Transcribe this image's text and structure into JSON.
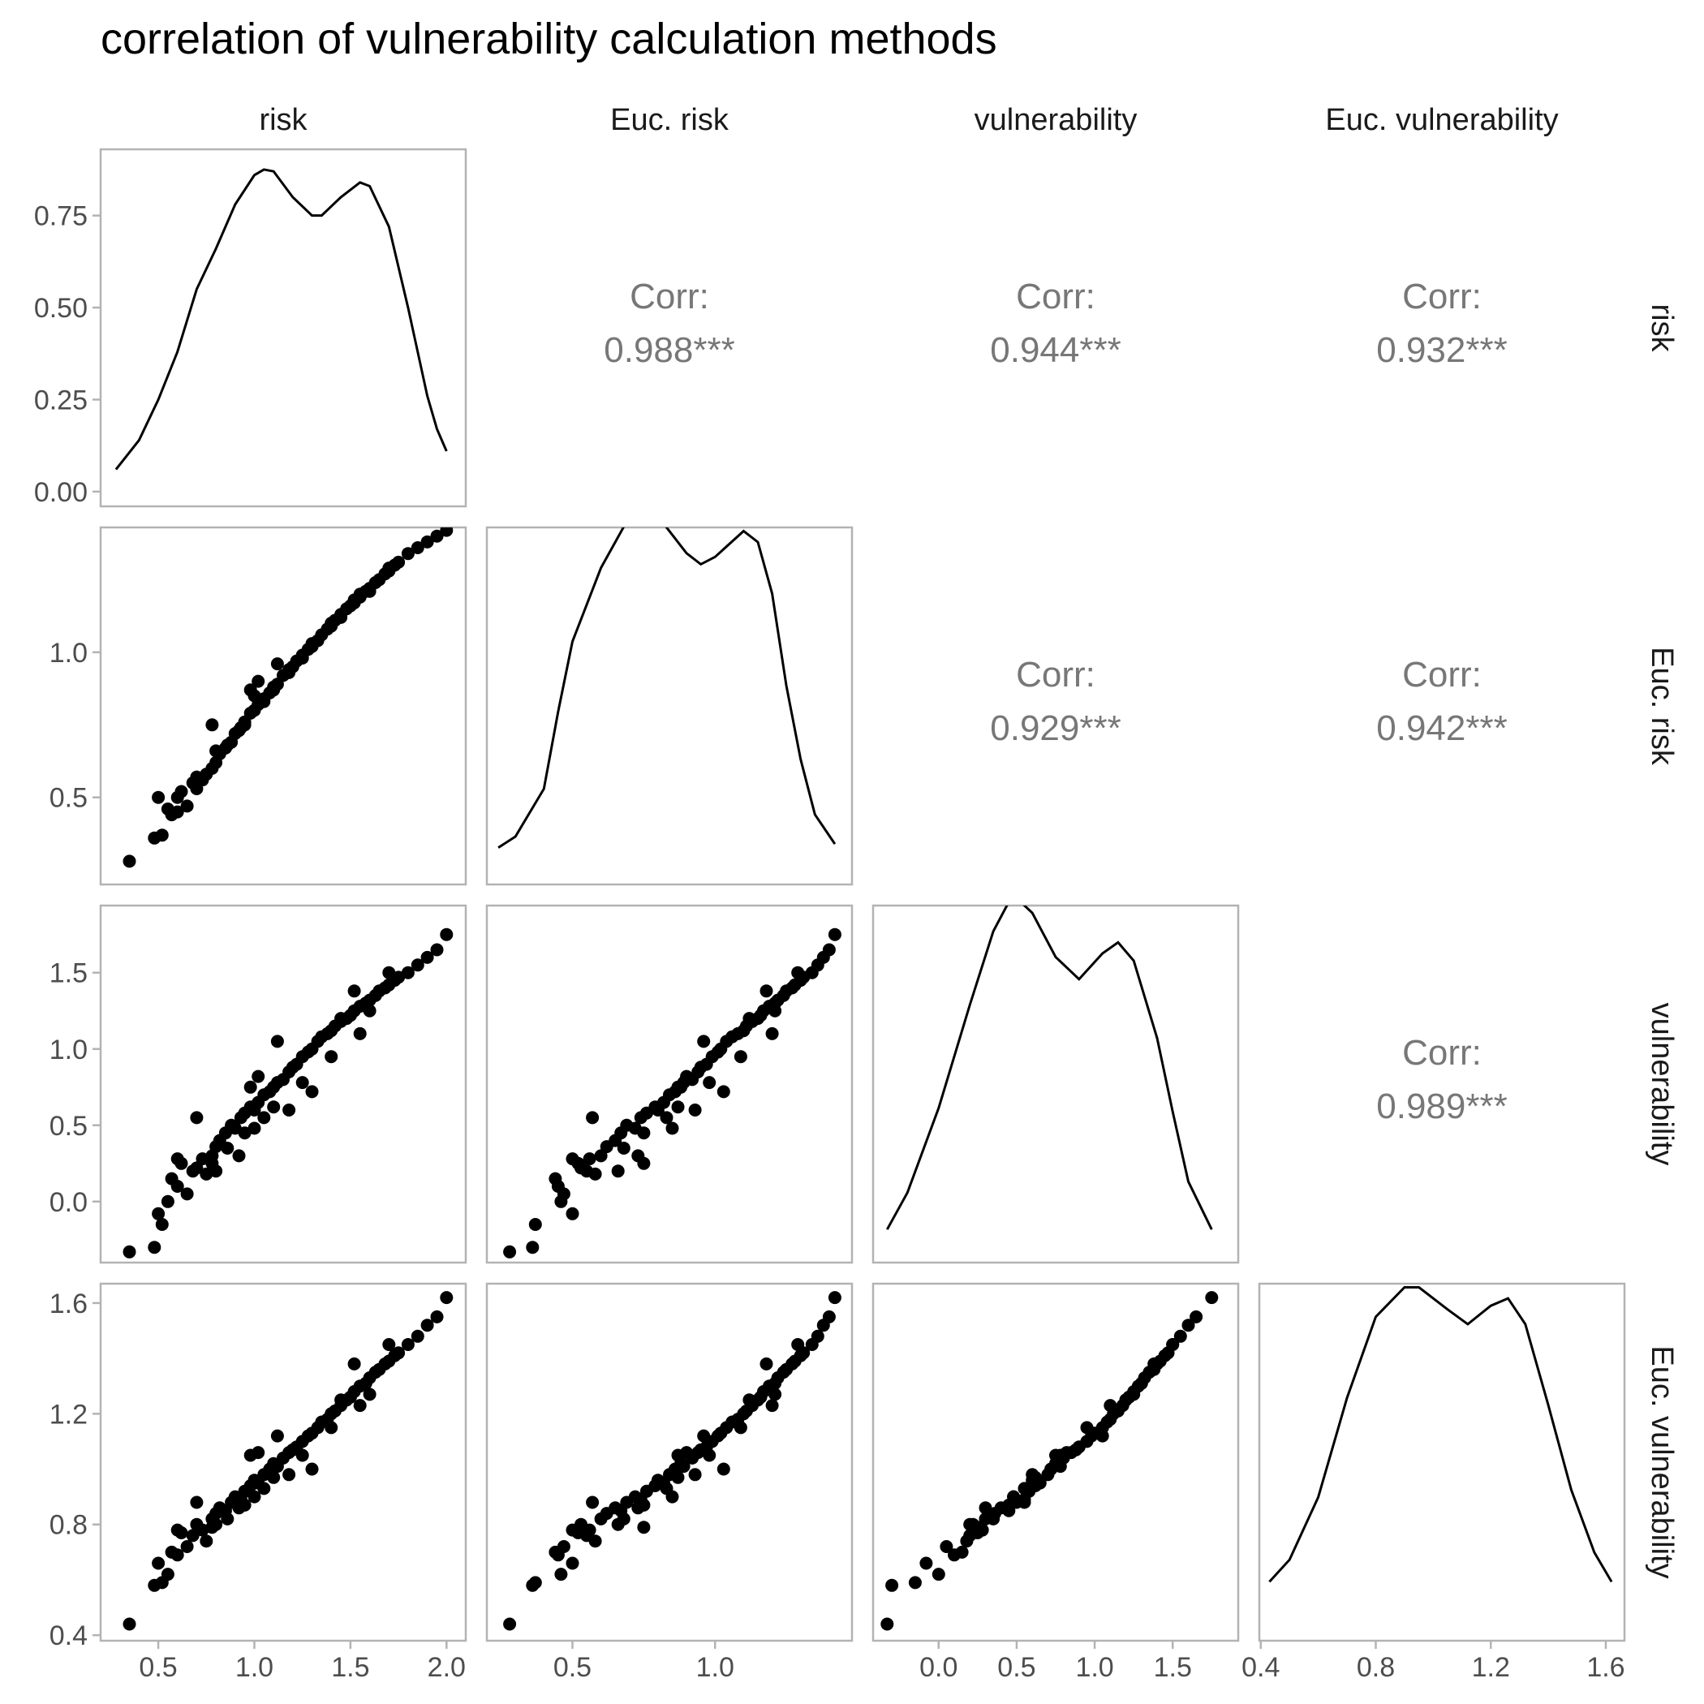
{
  "chart_data": {
    "type": "scatter",
    "title": "correlation of vulnerability calculation methods",
    "variables": [
      "risk",
      "Euc. risk",
      "vulnerability",
      "Euc. vulnerability"
    ],
    "grid": false,
    "axes": {
      "x": [
        {
          "range": [
            0.2,
            2.1
          ],
          "ticks": [
            0.5,
            1.0,
            1.5,
            2.0
          ],
          "tick_labels": [
            "0.5",
            "1.0",
            "1.5",
            "2.0"
          ]
        },
        {
          "range": [
            0.2,
            1.48
          ],
          "ticks": [
            0.5,
            1.0
          ],
          "tick_labels": [
            "0.5",
            "1.0"
          ]
        },
        {
          "range": [
            -0.42,
            1.92
          ],
          "ticks": [
            0.0,
            0.5,
            1.0,
            1.5
          ],
          "tick_labels": [
            "0.0",
            "0.5",
            "1.0",
            "1.5"
          ]
        },
        {
          "range": [
            0.395,
            1.665
          ],
          "ticks": [
            0.4,
            0.8,
            1.2,
            1.6
          ],
          "tick_labels": [
            "0.4",
            "0.8",
            "1.2",
            "1.6"
          ]
        }
      ],
      "y": [
        {
          "range": [
            -0.04,
            0.93
          ],
          "ticks": [
            0.0,
            0.25,
            0.5,
            0.75
          ],
          "tick_labels": [
            "0.00",
            "0.25",
            "0.50",
            "0.75"
          ]
        },
        {
          "range": [
            0.2,
            1.43
          ],
          "ticks": [
            0.5,
            1.0
          ],
          "tick_labels": [
            "0.5",
            "1.0"
          ]
        },
        {
          "range": [
            -0.4,
            1.94
          ],
          "ticks": [
            0.0,
            0.5,
            1.0,
            1.5
          ],
          "tick_labels": [
            "0.0",
            "0.5",
            "1.0",
            "1.5"
          ]
        },
        {
          "range": [
            0.38,
            1.67
          ],
          "ticks": [
            0.4,
            0.8,
            1.2,
            1.6
          ],
          "tick_labels": [
            "0.4",
            "0.8",
            "1.2",
            "1.6"
          ]
        }
      ]
    },
    "correlations": [
      {
        "row": 0,
        "col": 1,
        "label": "Corr:",
        "value": "0.988***"
      },
      {
        "row": 0,
        "col": 2,
        "label": "Corr:",
        "value": "0.944***"
      },
      {
        "row": 0,
        "col": 3,
        "label": "Corr:",
        "value": "0.932***"
      },
      {
        "row": 1,
        "col": 2,
        "label": "Corr:",
        "value": "0.929***"
      },
      {
        "row": 1,
        "col": 3,
        "label": "Corr:",
        "value": "0.942***"
      },
      {
        "row": 2,
        "col": 3,
        "label": "Corr:",
        "value": "0.989***"
      }
    ],
    "densities": [
      {
        "variable": "risk",
        "points": [
          [
            0.28,
            0.06
          ],
          [
            0.4,
            0.14
          ],
          [
            0.5,
            0.25
          ],
          [
            0.6,
            0.38
          ],
          [
            0.7,
            0.55
          ],
          [
            0.8,
            0.66
          ],
          [
            0.9,
            0.78
          ],
          [
            1.0,
            0.86
          ],
          [
            1.05,
            0.875
          ],
          [
            1.1,
            0.87
          ],
          [
            1.2,
            0.8
          ],
          [
            1.3,
            0.75
          ],
          [
            1.35,
            0.75
          ],
          [
            1.45,
            0.8
          ],
          [
            1.55,
            0.84
          ],
          [
            1.6,
            0.83
          ],
          [
            1.7,
            0.72
          ],
          [
            1.8,
            0.5
          ],
          [
            1.9,
            0.26
          ],
          [
            1.95,
            0.17
          ],
          [
            2.0,
            0.11
          ]
        ]
      },
      {
        "variable": "Euc. risk",
        "points": [
          [
            0.24,
            0.06
          ],
          [
            0.3,
            0.09
          ],
          [
            0.4,
            0.22
          ],
          [
            0.45,
            0.43
          ],
          [
            0.5,
            0.62
          ],
          [
            0.6,
            0.82
          ],
          [
            0.7,
            0.96
          ],
          [
            0.75,
            0.98
          ],
          [
            0.8,
            0.96
          ],
          [
            0.9,
            0.86
          ],
          [
            0.95,
            0.83
          ],
          [
            1.0,
            0.85
          ],
          [
            1.1,
            0.92
          ],
          [
            1.15,
            0.89
          ],
          [
            1.2,
            0.75
          ],
          [
            1.25,
            0.5
          ],
          [
            1.3,
            0.3
          ],
          [
            1.35,
            0.15
          ],
          [
            1.42,
            0.07
          ]
        ]
      },
      {
        "variable": "vulnerability",
        "points": [
          [
            -0.33,
            0.05
          ],
          [
            -0.2,
            0.15
          ],
          [
            0.0,
            0.38
          ],
          [
            0.2,
            0.66
          ],
          [
            0.35,
            0.86
          ],
          [
            0.45,
            0.94
          ],
          [
            0.5,
            0.95
          ],
          [
            0.6,
            0.91
          ],
          [
            0.75,
            0.79
          ],
          [
            0.9,
            0.73
          ],
          [
            1.05,
            0.8
          ],
          [
            1.15,
            0.83
          ],
          [
            1.25,
            0.78
          ],
          [
            1.4,
            0.57
          ],
          [
            1.5,
            0.37
          ],
          [
            1.6,
            0.18
          ],
          [
            1.75,
            0.05
          ]
        ]
      },
      {
        "variable": "Euc. vulnerability",
        "points": [
          [
            0.43,
            0.12
          ],
          [
            0.5,
            0.18
          ],
          [
            0.6,
            0.35
          ],
          [
            0.7,
            0.62
          ],
          [
            0.8,
            0.84
          ],
          [
            0.9,
            0.92
          ],
          [
            0.95,
            0.92
          ],
          [
            1.05,
            0.86
          ],
          [
            1.12,
            0.82
          ],
          [
            1.2,
            0.87
          ],
          [
            1.26,
            0.89
          ],
          [
            1.32,
            0.82
          ],
          [
            1.4,
            0.6
          ],
          [
            1.48,
            0.37
          ],
          [
            1.56,
            0.2
          ],
          [
            1.62,
            0.12
          ]
        ]
      }
    ],
    "points": [
      [
        0.35,
        0.28,
        -0.33,
        0.44
      ],
      [
        0.48,
        0.36,
        -0.3,
        0.58
      ],
      [
        0.52,
        0.37,
        -0.15,
        0.59
      ],
      [
        0.55,
        0.46,
        0.0,
        0.62
      ],
      [
        0.5,
        0.5,
        -0.08,
        0.66
      ],
      [
        0.57,
        0.44,
        0.15,
        0.7
      ],
      [
        0.6,
        0.45,
        0.1,
        0.69
      ],
      [
        0.65,
        0.47,
        0.05,
        0.72
      ],
      [
        0.62,
        0.52,
        0.25,
        0.77
      ],
      [
        0.68,
        0.55,
        0.2,
        0.76
      ],
      [
        0.7,
        0.53,
        0.22,
        0.8
      ],
      [
        0.73,
        0.56,
        0.28,
        0.78
      ],
      [
        0.78,
        0.6,
        0.3,
        0.82
      ],
      [
        0.8,
        0.62,
        0.36,
        0.84
      ],
      [
        0.75,
        0.58,
        0.18,
        0.74
      ],
      [
        0.82,
        0.65,
        0.4,
        0.86
      ],
      [
        0.85,
        0.67,
        0.45,
        0.85
      ],
      [
        0.88,
        0.69,
        0.5,
        0.88
      ],
      [
        0.9,
        0.72,
        0.48,
        0.9
      ],
      [
        0.93,
        0.74,
        0.55,
        0.89
      ],
      [
        0.95,
        0.76,
        0.58,
        0.92
      ],
      [
        0.98,
        0.79,
        0.62,
        0.94
      ],
      [
        1.0,
        0.8,
        0.6,
        0.96
      ],
      [
        1.02,
        0.82,
        0.65,
        0.95
      ],
      [
        1.05,
        0.84,
        0.7,
        0.98
      ],
      [
        1.08,
        0.86,
        0.72,
        1.0
      ],
      [
        1.1,
        0.88,
        0.75,
        1.02
      ],
      [
        1.12,
        0.89,
        0.78,
        1.01
      ],
      [
        1.15,
        0.92,
        0.8,
        1.04
      ],
      [
        1.18,
        0.94,
        0.85,
        1.06
      ],
      [
        1.2,
        0.95,
        0.88,
        1.07
      ],
      [
        1.22,
        0.97,
        0.9,
        1.08
      ],
      [
        1.25,
        0.99,
        0.95,
        1.1
      ],
      [
        1.28,
        1.01,
        0.98,
        1.12
      ],
      [
        1.3,
        1.02,
        1.0,
        1.13
      ],
      [
        1.33,
        1.04,
        1.05,
        1.15
      ],
      [
        1.35,
        1.06,
        1.08,
        1.17
      ],
      [
        1.38,
        1.08,
        1.1,
        1.18
      ],
      [
        1.4,
        1.1,
        1.12,
        1.2
      ],
      [
        1.42,
        1.11,
        1.15,
        1.21
      ],
      [
        1.45,
        1.13,
        1.18,
        1.23
      ],
      [
        1.48,
        1.15,
        1.2,
        1.25
      ],
      [
        1.5,
        1.16,
        1.22,
        1.26
      ],
      [
        1.52,
        1.17,
        1.25,
        1.28
      ],
      [
        1.55,
        1.19,
        1.28,
        1.3
      ],
      [
        1.58,
        1.21,
        1.3,
        1.31
      ],
      [
        1.6,
        1.22,
        1.32,
        1.33
      ],
      [
        1.63,
        1.24,
        1.35,
        1.35
      ],
      [
        1.65,
        1.25,
        1.38,
        1.36
      ],
      [
        1.68,
        1.27,
        1.4,
        1.38
      ],
      [
        1.7,
        1.28,
        1.42,
        1.39
      ],
      [
        1.73,
        1.3,
        1.45,
        1.41
      ],
      [
        1.75,
        1.31,
        1.47,
        1.42
      ],
      [
        1.8,
        1.34,
        1.5,
        1.45
      ],
      [
        1.85,
        1.36,
        1.55,
        1.48
      ],
      [
        1.9,
        1.38,
        1.6,
        1.52
      ],
      [
        1.95,
        1.4,
        1.65,
        1.55
      ],
      [
        2.0,
        1.42,
        1.75,
        1.62
      ],
      [
        0.98,
        0.87,
        0.75,
        1.05
      ],
      [
        1.02,
        0.9,
        0.82,
        1.06
      ],
      [
        0.92,
        0.73,
        0.3,
        0.86
      ],
      [
        1.12,
        0.96,
        1.05,
        1.12
      ],
      [
        1.3,
        1.03,
        0.72,
        1.0
      ],
      [
        1.18,
        0.93,
        0.6,
        0.98
      ],
      [
        1.05,
        0.83,
        0.55,
        0.93
      ],
      [
        0.7,
        0.57,
        0.55,
        0.88
      ],
      [
        1.55,
        1.2,
        1.1,
        1.23
      ],
      [
        1.4,
        1.09,
        0.95,
        1.15
      ],
      [
        1.25,
        0.98,
        0.78,
        1.05
      ],
      [
        0.86,
        0.68,
        0.35,
        0.82
      ],
      [
        0.95,
        0.75,
        0.45,
        0.87
      ],
      [
        1.1,
        0.87,
        0.62,
        0.97
      ],
      [
        1.45,
        1.12,
        1.2,
        1.25
      ],
      [
        1.6,
        1.21,
        1.25,
        1.27
      ],
      [
        0.78,
        0.75,
        0.25,
        0.79
      ],
      [
        0.8,
        0.66,
        0.2,
        0.8
      ],
      [
        1.0,
        0.85,
        0.48,
        0.9
      ],
      [
        0.6,
        0.5,
        0.28,
        0.78
      ],
      [
        1.7,
        1.29,
        1.5,
        1.45
      ],
      [
        1.52,
        1.18,
        1.38,
        1.38
      ]
    ]
  }
}
